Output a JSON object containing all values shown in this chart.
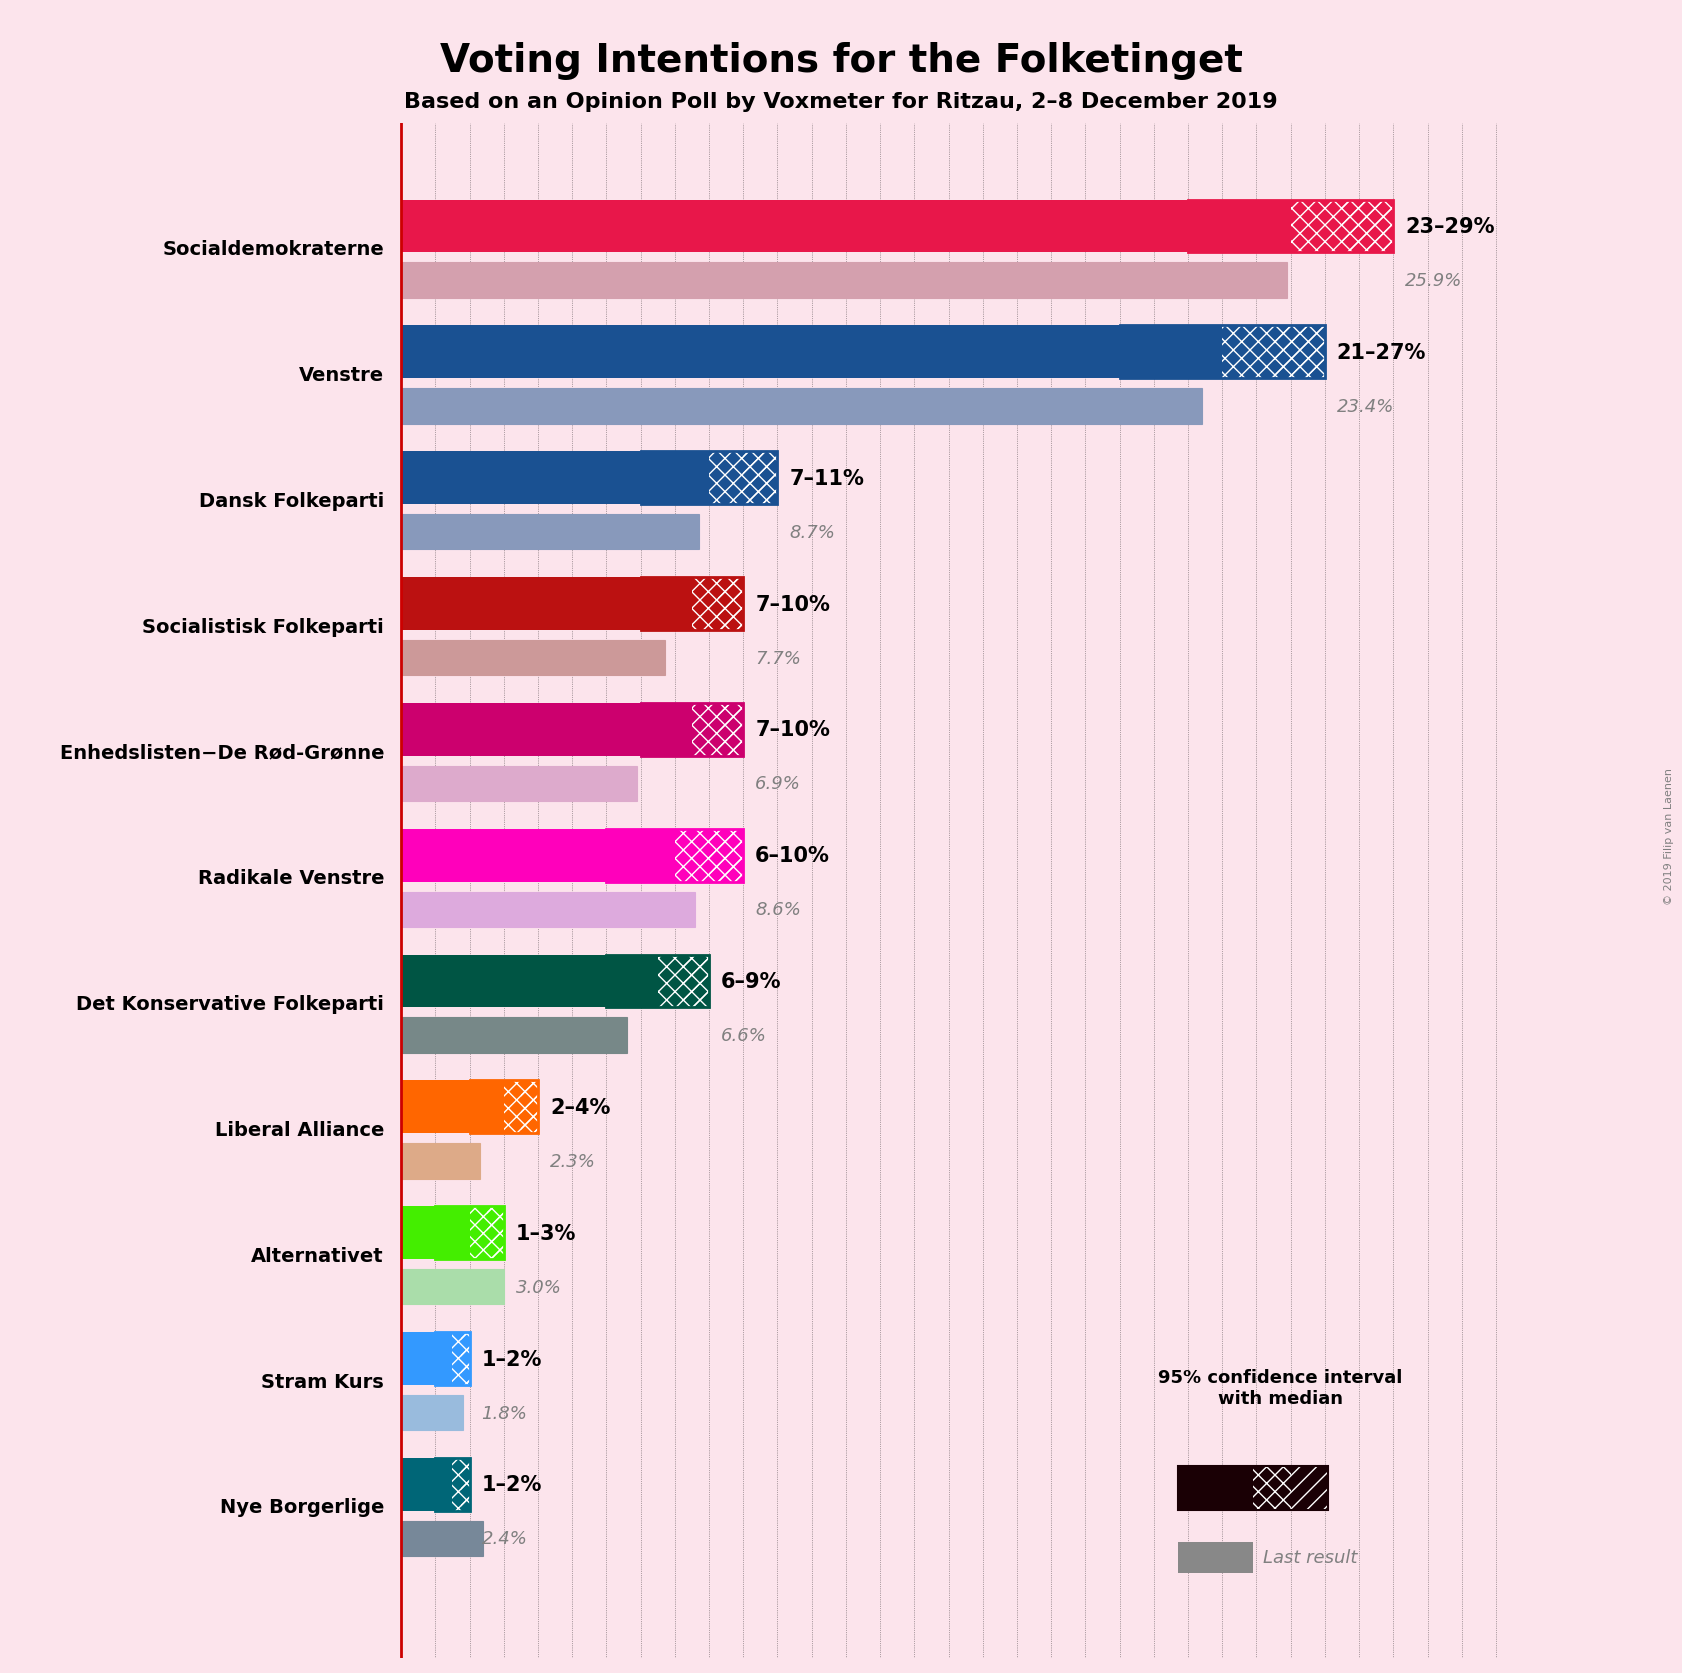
{
  "title": "Voting Intentions for the Folketinget",
  "subtitle": "Based on an Opinion Poll by Voxmeter for Ritzau, 2–8 December 2019",
  "background_color": "#fce4ec",
  "parties": [
    {
      "name": "Socialdemokraterne",
      "low": 23,
      "high": 29,
      "median": 26,
      "last": 25.9,
      "color": "#e8174a",
      "color_light": "#f0748a",
      "last_color": "#d4a0ae",
      "hatch_color": "#e8174a"
    },
    {
      "name": "Venstre",
      "low": 21,
      "high": 27,
      "median": 24,
      "last": 23.4,
      "color": "#1a5192",
      "color_light": "#4a7ab8",
      "last_color": "#8899bb",
      "hatch_color": "#1a5192"
    },
    {
      "name": "Dansk Folkeparti",
      "low": 7,
      "high": 11,
      "median": 9,
      "last": 8.7,
      "color": "#1a5192",
      "color_light": "#4a7ab8",
      "last_color": "#8899bb",
      "hatch_color": "#1a5192"
    },
    {
      "name": "Socialistisk Folkeparti",
      "low": 7,
      "high": 10,
      "median": 8.5,
      "last": 7.7,
      "color": "#bb1111",
      "color_light": "#cc5555",
      "last_color": "#cc9999",
      "hatch_color": "#bb1111"
    },
    {
      "name": "Enhedslisten−De Rød-Grønne",
      "low": 7,
      "high": 10,
      "median": 8.5,
      "last": 6.9,
      "color": "#cc006e",
      "color_light": "#dd5599",
      "last_color": "#ddaacc",
      "hatch_color": "#cc006e"
    },
    {
      "name": "Radikale Venstre",
      "low": 6,
      "high": 10,
      "median": 8,
      "last": 8.6,
      "color": "#ff00bb",
      "color_light": "#ff66cc",
      "last_color": "#ddaadd",
      "hatch_color": "#ff00bb"
    },
    {
      "name": "Det Konservative Folkeparti",
      "low": 6,
      "high": 9,
      "median": 7.5,
      "last": 6.6,
      "color": "#005544",
      "color_light": "#337766",
      "last_color": "#778888",
      "hatch_color": "#005544"
    },
    {
      "name": "Liberal Alliance",
      "low": 2,
      "high": 4,
      "median": 3,
      "last": 2.3,
      "color": "#ff6600",
      "color_light": "#ff9944",
      "last_color": "#ddaa88",
      "hatch_color": "#ff6600"
    },
    {
      "name": "Alternativet",
      "low": 1,
      "high": 3,
      "median": 2,
      "last": 3.0,
      "color": "#44ee00",
      "color_light": "#88ee55",
      "last_color": "#aaddaa",
      "hatch_color": "#44ee00"
    },
    {
      "name": "Stram Kurs",
      "low": 1,
      "high": 2,
      "median": 1.5,
      "last": 1.8,
      "color": "#3399ff",
      "color_light": "#77bbff",
      "last_color": "#99bbdd",
      "hatch_color": "#3399ff"
    },
    {
      "name": "Nye Borgerlige",
      "low": 1,
      "high": 2,
      "median": 1.5,
      "last": 2.4,
      "color": "#006677",
      "color_light": "#338899",
      "last_color": "#778899",
      "hatch_color": "#006677"
    }
  ],
  "label_ranges": [
    "23–29%",
    "21–27%",
    "7–11%",
    "7–10%",
    "7–10%",
    "6–10%",
    "6–9%",
    "2–4%",
    "1–3%",
    "1–2%",
    "1–2%"
  ],
  "label_medians": [
    "25.9%",
    "23.4%",
    "8.7%",
    "7.7%",
    "6.9%",
    "8.6%",
    "6.6%",
    "2.3%",
    "3.0%",
    "1.8%",
    "2.4%"
  ],
  "xmax": 32,
  "copyright": "© 2019 Filip van Laenen"
}
